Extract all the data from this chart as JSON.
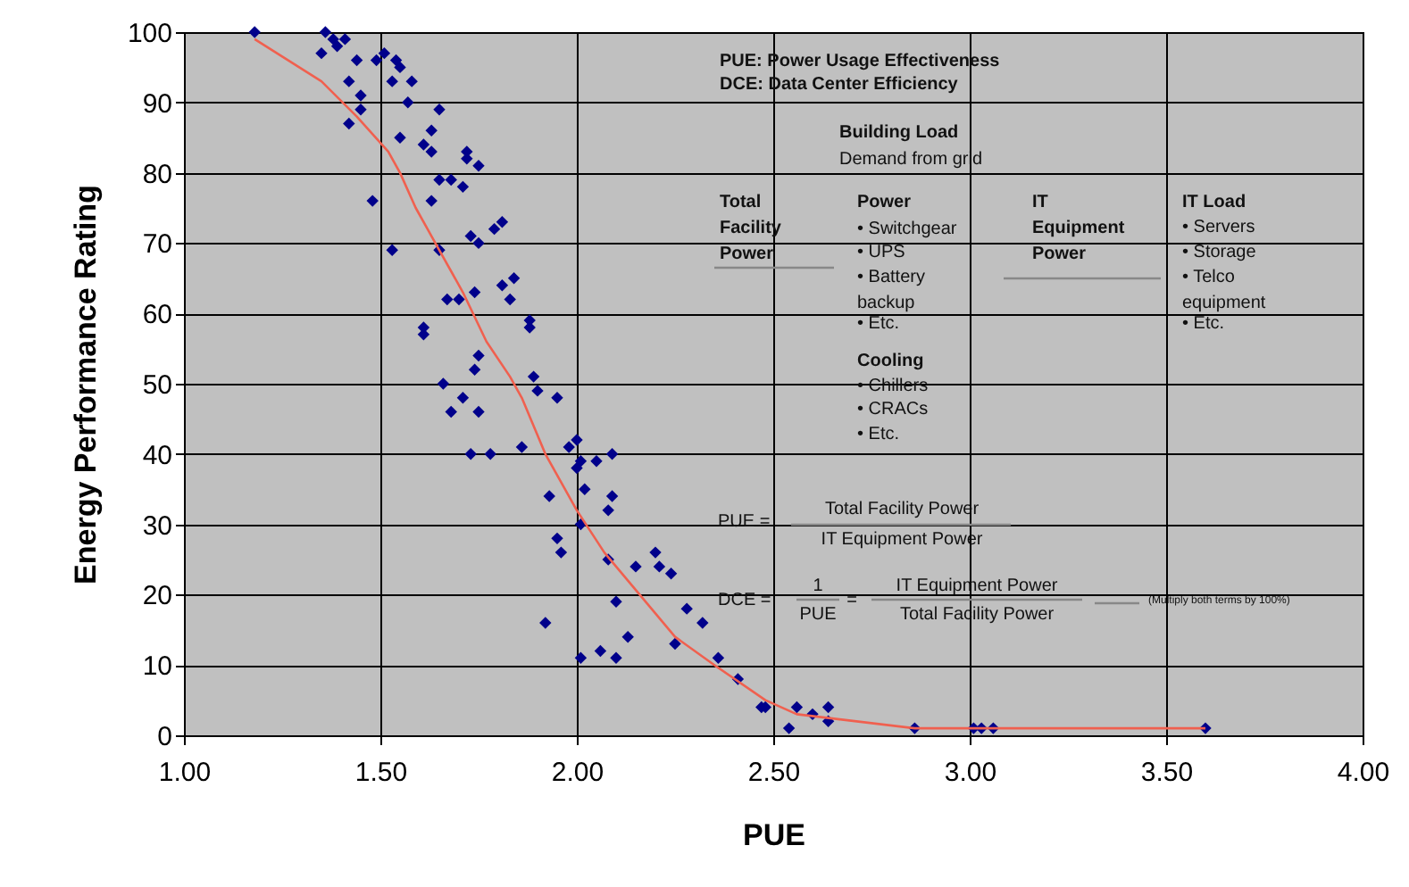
{
  "chart_data": {
    "type": "scatter",
    "xlabel": "PUE",
    "ylabel": "Energy Performance Rating",
    "xlim": [
      1,
      4
    ],
    "ylim": [
      0,
      100
    ],
    "xticks": [
      {
        "value": 1,
        "label": "1.00"
      },
      {
        "value": 1.5,
        "label": "1.50"
      },
      {
        "value": 2,
        "label": "2.00"
      },
      {
        "value": 2.5,
        "label": "2.50"
      },
      {
        "value": 3,
        "label": "3.00"
      },
      {
        "value": 3.5,
        "label": "3.50"
      },
      {
        "value": 4,
        "label": "4.00"
      }
    ],
    "yticks": [
      0,
      10,
      20,
      30,
      40,
      50,
      60,
      70,
      80,
      90,
      100
    ],
    "grid": true,
    "series": [
      {
        "marker": "diamond",
        "color": "#00008b",
        "x": [
          1.18,
          1.36,
          1.35,
          1.38,
          1.39,
          1.41,
          1.44,
          1.42,
          1.45,
          1.45,
          1.42,
          1.49,
          1.51,
          1.54,
          1.55,
          1.53,
          1.58,
          1.57,
          1.65,
          1.55,
          1.63,
          1.61,
          1.63,
          1.72,
          1.72,
          1.75,
          1.65,
          1.68,
          1.71,
          1.63,
          1.48,
          1.53,
          1.65,
          1.73,
          1.75,
          1.79,
          1.81,
          1.81,
          1.84,
          1.83,
          1.67,
          1.7,
          1.74,
          1.61,
          1.61,
          1.88,
          1.88,
          1.75,
          1.74,
          1.66,
          1.89,
          1.9,
          1.95,
          1.71,
          1.68,
          1.75,
          1.73,
          1.78,
          1.86,
          1.93,
          1.95,
          1.96,
          1.92,
          1.98,
          2.0,
          2.01,
          2.0,
          2.02,
          2.01,
          2.05,
          2.09,
          2.09,
          2.08,
          2.08,
          2.1,
          2.15,
          2.2,
          2.21,
          2.24,
          2.28,
          2.25,
          2.13,
          2.06,
          2.01,
          2.1,
          2.32,
          2.36,
          2.41,
          2.47,
          2.48,
          2.54,
          2.56,
          2.6,
          2.64,
          2.64,
          2.86,
          3.01,
          3.03,
          3.06,
          3.6
        ],
        "values": [
          100,
          100,
          97,
          99,
          98,
          99,
          96,
          93,
          91,
          89,
          87,
          96,
          97,
          96,
          95,
          93,
          93,
          90,
          89,
          85,
          86,
          84,
          83,
          83,
          82,
          81,
          79,
          79,
          78,
          76,
          76,
          69,
          69,
          71,
          70,
          72,
          73,
          64,
          65,
          62,
          62,
          62,
          63,
          58,
          57,
          59,
          58,
          54,
          52,
          50,
          51,
          49,
          48,
          48,
          46,
          46,
          40,
          40,
          41,
          34,
          28,
          26,
          16,
          41,
          42,
          39,
          38,
          35,
          30,
          39,
          40,
          34,
          32,
          25,
          19,
          24,
          26,
          24,
          23,
          18,
          13,
          14,
          12,
          11,
          11,
          16,
          11,
          8,
          4,
          4,
          1,
          4,
          3,
          4,
          2,
          1,
          1,
          1,
          1,
          1
        ]
      },
      {
        "type": "line",
        "marker": "none",
        "color": "#f0604f",
        "x": [
          1.18,
          1.35,
          1.44,
          1.52,
          1.55,
          1.59,
          1.65,
          1.71,
          1.77,
          1.83,
          1.86,
          1.92,
          2.0,
          2.07,
          2.16,
          2.25,
          2.35,
          2.48,
          2.56,
          2.86,
          3.6
        ],
        "values": [
          99,
          93,
          88,
          83,
          80,
          75,
          69,
          63,
          56,
          51,
          48,
          40,
          32,
          26,
          20,
          14,
          10,
          5,
          3,
          1,
          1
        ]
      }
    ],
    "annotations": [
      "PUE: Power Usage Effectiveness",
      "DCE: Data Center Efficiency",
      "Building Load",
      "Demand from grid",
      "Total\nFacility\nPower",
      "Power",
      "• Switchgear",
      "• UPS",
      "• Battery\n   backup",
      "• Etc.",
      "Cooling",
      "• Chillers",
      "• CRACs",
      "• Etc.",
      "IT\nEquipment\nPower",
      "IT Load",
      "• Servers",
      "• Storage",
      "• Telco\n   equipment",
      "• Etc.",
      "PUE =",
      "Total Facility Power",
      "IT Equipment Power",
      "DCE =",
      "1",
      "PUE",
      "=",
      "IT Equipment Power",
      "Total Facility Power",
      "(Multiply both terms by 100%)"
    ]
  }
}
